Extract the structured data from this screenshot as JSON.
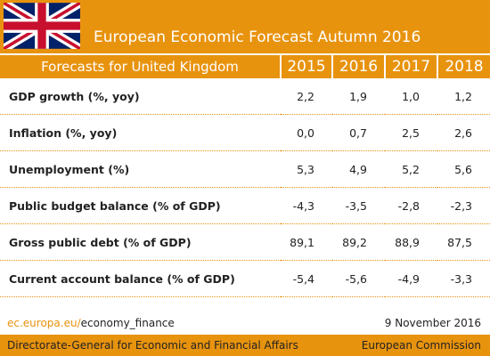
{
  "header": {
    "title": "European Economic Forecast Autumn 2016"
  },
  "table": {
    "caption": "Forecasts for United Kingdom",
    "columns": [
      "2015",
      "2016",
      "2017",
      "2018"
    ],
    "rows": [
      [
        "GDP growth (%, yoy)",
        "2,2",
        "1,9",
        "1,0",
        "1,2"
      ],
      [
        "Inflation (%, yoy)",
        "0,0",
        "0,7",
        "2,5",
        "2,6"
      ],
      [
        "Unemployment (%)",
        "5,3",
        "4,9",
        "5,2",
        "5,6"
      ],
      [
        "Public budget balance (% of GDP)",
        "-4,3",
        "-3,5",
        "-2,8",
        "-2,3"
      ],
      [
        "Gross public debt (% of GDP)",
        "89,1",
        "89,2",
        "88,9",
        "87,5"
      ],
      [
        "Current account balance (% of GDP)",
        "-5,4",
        "-5,6",
        "-4,9",
        "-3,3"
      ]
    ]
  },
  "footer": {
    "url_domain": "ec.europa.eu/",
    "url_path": "economy_finance",
    "date": "9 November 2016",
    "department": "Directorate-General for Economic and Financial Affairs",
    "organisation": "European Commission"
  }
}
